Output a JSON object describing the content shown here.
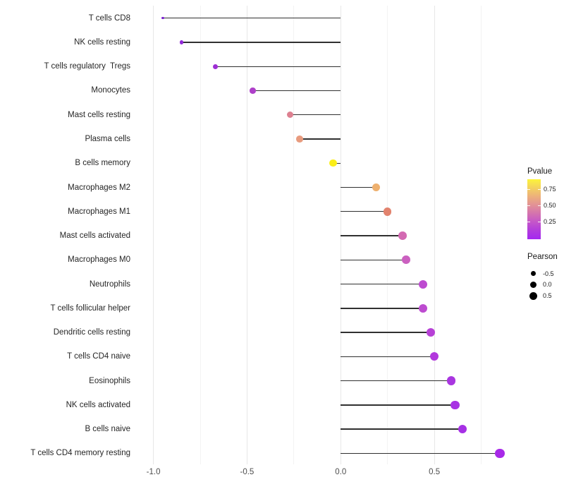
{
  "chart_data": {
    "type": "lollipop",
    "title": "",
    "xlabel": "",
    "ylabel": "",
    "xlim": [
      -1.05,
      0.95
    ],
    "baseline": 0.0,
    "x_major_ticks": [
      -1.0,
      -0.5,
      0.0,
      0.5
    ],
    "x_major_tick_labels": [
      "-1.0",
      "-0.5",
      "0.0",
      "0.5"
    ],
    "x_minor_ticks": [
      -0.75,
      -0.25,
      0.25,
      0.75
    ],
    "grid": true,
    "legend_position": "right",
    "size_encoding": "Pearson",
    "color_encoding": "Pvalue",
    "points": [
      {
        "label": "T cells CD8",
        "pearson": -0.95,
        "color": "#7b22cf"
      },
      {
        "label": "NK cells resting",
        "pearson": -0.85,
        "color": "#9129d8"
      },
      {
        "label": "T cells regulatory  Tregs",
        "pearson": -0.67,
        "color": "#9d2ed4"
      },
      {
        "label": "Monocytes",
        "pearson": -0.47,
        "color": "#ae40c9"
      },
      {
        "label": "Mast cells resting",
        "pearson": -0.27,
        "color": "#dd8090"
      },
      {
        "label": "Plasma cells",
        "pearson": -0.22,
        "color": "#e89b7e"
      },
      {
        "label": "B cells memory",
        "pearson": -0.04,
        "color": "#fbee18"
      },
      {
        "label": "Macrophages M2",
        "pearson": 0.19,
        "color": "#eeb06e"
      },
      {
        "label": "Macrophages M1",
        "pearson": 0.25,
        "color": "#e2836e"
      },
      {
        "label": "Mast cells activated",
        "pearson": 0.33,
        "color": "#d36ab2"
      },
      {
        "label": "Macrophages M0",
        "pearson": 0.35,
        "color": "#cb60c0"
      },
      {
        "label": "Neutrophils",
        "pearson": 0.44,
        "color": "#bd4bd0"
      },
      {
        "label": "T cells follicular helper",
        "pearson": 0.44,
        "color": "#bd4bd0"
      },
      {
        "label": "Dendritic cells resting",
        "pearson": 0.48,
        "color": "#b741d6"
      },
      {
        "label": "T cells CD4 naive",
        "pearson": 0.5,
        "color": "#b238dd"
      },
      {
        "label": "Eosinophils",
        "pearson": 0.59,
        "color": "#a936e0"
      },
      {
        "label": "NK cells activated",
        "pearson": 0.61,
        "color": "#a832e3"
      },
      {
        "label": "B cells naive",
        "pearson": 0.65,
        "color": "#a630e5"
      },
      {
        "label": "T cells CD4 memory resting",
        "pearson": 0.85,
        "color": "#a829e8"
      }
    ]
  },
  "legend_pvalue": {
    "title": "Pvalue",
    "tick_labels": [
      "0.75",
      "0.50",
      "0.25"
    ],
    "gradient_stops": [
      "#fcf43b 0%",
      "#f2cb65 17%",
      "#ecad7e 30%",
      "#e18f98 44%",
      "#d473ae 57%",
      "#c658c7 70%",
      "#b23ddc 85%",
      "#a428f0 100%"
    ]
  },
  "legend_pearson": {
    "title": "Pearson",
    "items": [
      {
        "label": "-0.5",
        "diameter": 7.3
      },
      {
        "label": "0.0",
        "diameter": 9.3
      },
      {
        "label": "0.5",
        "diameter": 11.3
      }
    ]
  },
  "colors": {
    "background": "#ffffff",
    "stem": "#303030",
    "grid_major": "#e7e7e7",
    "grid_minor": "#f3f3f3",
    "axis_text": "#4d4d4d",
    "label_text": "#262626",
    "legend_dot": "#000000"
  }
}
